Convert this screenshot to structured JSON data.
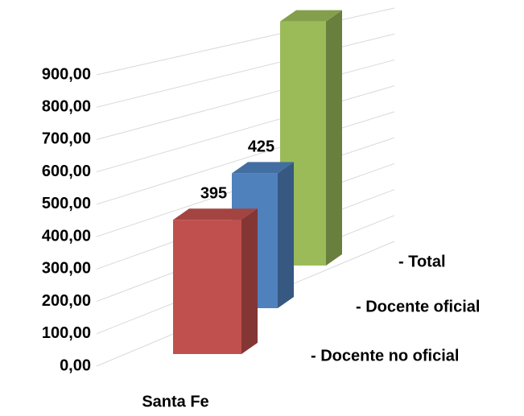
{
  "chart_data": {
    "type": "bar3d",
    "categories": [
      "Santa Fe"
    ],
    "series": [
      {
        "name": "- Docente no oficial",
        "color": "#c0504d",
        "values": [
          395
        ]
      },
      {
        "name": "- Docente oficial",
        "color": "#4f81bd",
        "values": [
          425
        ]
      },
      {
        "name": "- Total",
        "color": "#9bbb59",
        "values": [
          820
        ]
      }
    ],
    "ylim": [
      0,
      900
    ],
    "yticks": [
      {
        "value": 0,
        "label": "0,00"
      },
      {
        "value": 100,
        "label": "100,00"
      },
      {
        "value": 200,
        "label": "200,00"
      },
      {
        "value": 300,
        "label": "300,00"
      },
      {
        "value": 400,
        "label": "400,00"
      },
      {
        "value": 500,
        "label": "500,00"
      },
      {
        "value": 600,
        "label": "600,00"
      },
      {
        "value": 700,
        "label": "700,00"
      },
      {
        "value": 800,
        "label": "800,00"
      },
      {
        "value": 900,
        "label": "900,00"
      }
    ],
    "grid": true
  }
}
